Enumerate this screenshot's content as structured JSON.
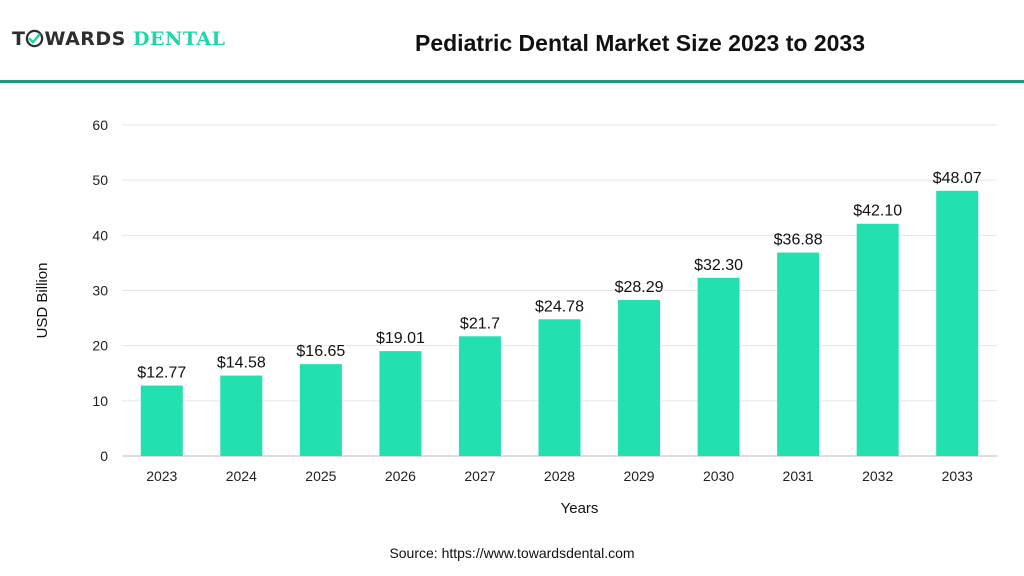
{
  "header": {
    "logo_part1": "T",
    "logo_part2": "WARDS",
    "logo_part3": "DENTAL",
    "title": "Pediatric Dental Market Size 2023 to 2033"
  },
  "colors": {
    "bar": "#22e0b0",
    "rule": "#1d9a7b",
    "grid": "#e6e6e6"
  },
  "chart_data": {
    "type": "bar",
    "title": "Pediatric Dental Market Size 2023 to 2033",
    "xlabel": "Years",
    "ylabel": "USD Billion",
    "ylim": [
      0,
      60
    ],
    "yticks": [
      0,
      10,
      20,
      30,
      40,
      50,
      60
    ],
    "grid": true,
    "categories": [
      "2023",
      "2024",
      "2025",
      "2026",
      "2027",
      "2028",
      "2029",
      "2030",
      "2031",
      "2032",
      "2033"
    ],
    "values": [
      12.77,
      14.58,
      16.65,
      19.01,
      21.7,
      24.78,
      28.29,
      32.3,
      36.88,
      42.1,
      48.07
    ],
    "labels": [
      "$12.77",
      "$14.58",
      "$16.65",
      "$19.01",
      "$21.7",
      "$24.78",
      "$28.29",
      "$32.30",
      "$36.88",
      "$42.10",
      "$48.07"
    ]
  },
  "footer": {
    "source": "Source: https://www.towardsdental.com"
  }
}
